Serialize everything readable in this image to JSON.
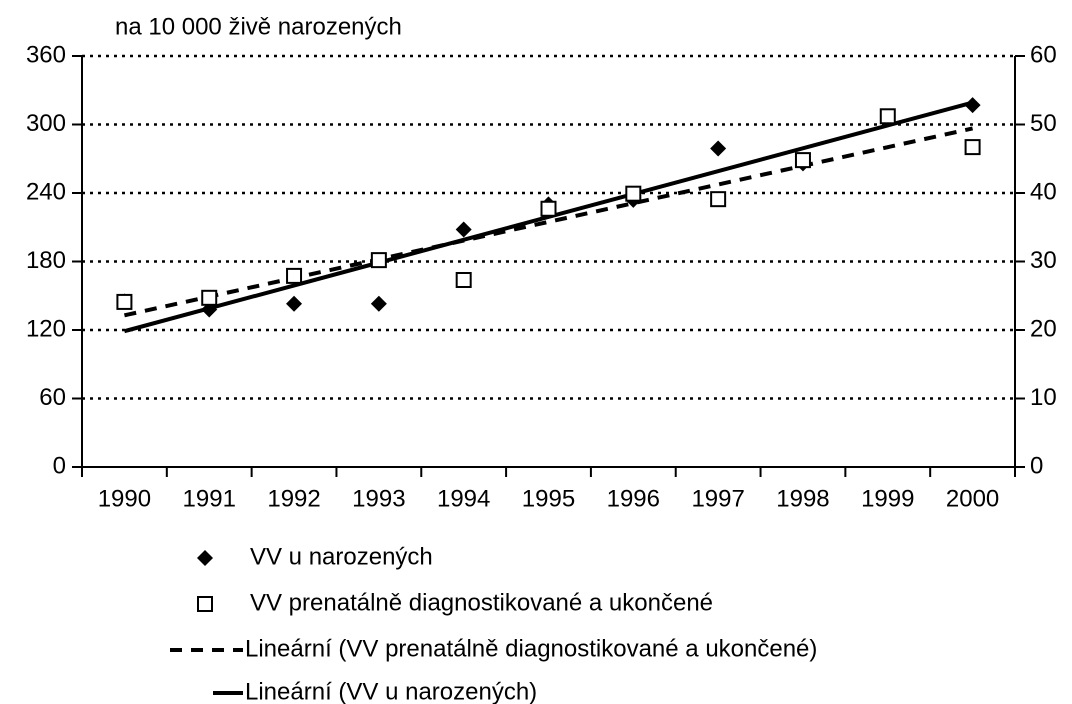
{
  "chart_data": {
    "type": "scatter",
    "y_label": "na 10 000 živě narozených",
    "categories": [
      "1990",
      "1991",
      "1992",
      "1993",
      "1994",
      "1995",
      "1996",
      "1997",
      "1998",
      "1999",
      "2000"
    ],
    "series": [
      {
        "name": "VV u narozených",
        "marker": "diamond",
        "color": "#000000",
        "values": [
          145,
          138,
          143,
          143,
          208,
          230,
          234,
          279,
          266,
          307,
          317
        ],
        "trendline": {
          "name": "Lineární (VV u narozených)",
          "dash": false
        }
      },
      {
        "name": "VV  prenatálně diagnostikované a ukončené",
        "marker": "square",
        "color": "#000000",
        "axis": "y2",
        "values": [
          24.1,
          24.7,
          27.9,
          30.2,
          27.3,
          37.7,
          39.9,
          39.1,
          44.8,
          51.2,
          46.7
        ],
        "trendline": {
          "name": "Lineární (VV  prenatálně diagnostikované a ukončené)",
          "dash": true
        }
      }
    ],
    "ylim": [
      0,
      360
    ],
    "yticks": [
      0,
      60,
      120,
      180,
      240,
      300,
      360
    ],
    "y2lim": [
      0,
      60
    ],
    "y2ticks": [
      0,
      10,
      20,
      30,
      40,
      50,
      60
    ],
    "grid": true
  }
}
